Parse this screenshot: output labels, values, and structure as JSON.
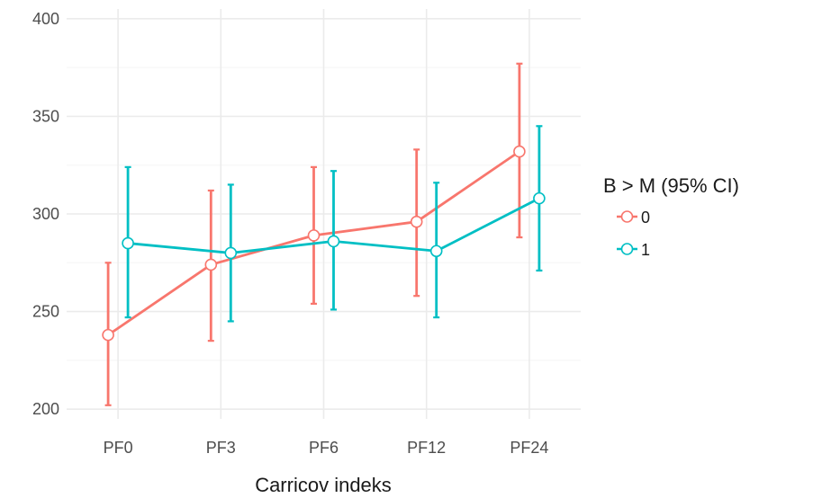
{
  "chart_data": {
    "type": "line",
    "title": "",
    "xlabel": "Carricov indeks",
    "ylabel": "",
    "categories": [
      "PF0",
      "PF3",
      "PF6",
      "PF12",
      "PF24"
    ],
    "ylim": [
      195,
      405
    ],
    "yticks": [
      200,
      250,
      300,
      350,
      400
    ],
    "grid": true,
    "legend": {
      "title": "B > M (95% CI)",
      "position": "right"
    },
    "series": [
      {
        "name": "0",
        "color": "#F8766D",
        "values": [
          238,
          274,
          289,
          296,
          332
        ],
        "lower": [
          202,
          235,
          254,
          258,
          288
        ],
        "upper": [
          275,
          312,
          324,
          333,
          377
        ]
      },
      {
        "name": "1",
        "color": "#00BFC4",
        "values": [
          285,
          280,
          286,
          281,
          308
        ],
        "lower": [
          247,
          245,
          251,
          247,
          271
        ],
        "upper": [
          324,
          315,
          322,
          316,
          345
        ]
      }
    ]
  }
}
